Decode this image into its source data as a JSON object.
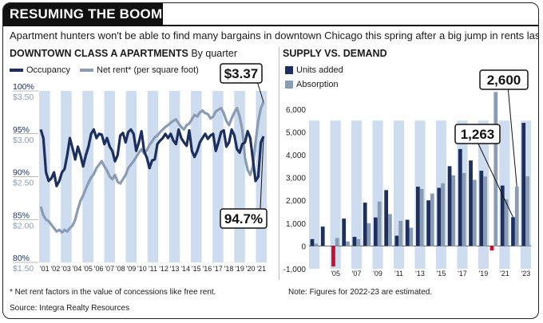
{
  "header": {
    "banner": "RESUMING THE BOOM",
    "subtitle": "Apartment hunters won't be able to find many bargains in downtown Chicago this spring after a big jump in rents last year."
  },
  "footer": {
    "footnote": "* Net rent factors in the value of concessions like free rent.",
    "source": "Source: Integra Realty Resources",
    "note": "Note: Figures for 2022-23 are estimated."
  },
  "colors": {
    "occupancy": "#1c2f5e",
    "net_rent": "#8a9bb4",
    "units_added": "#1c2f5e",
    "absorption": "#8a9bb4",
    "negative_units": "#c8102e",
    "stripe": "#cddcef",
    "label_bg": "#1c2f5e"
  },
  "chart_data": [
    {
      "type": "line",
      "title": "DOWNTOWN CLASS A APARTMENTS",
      "subtitle": "By quarter",
      "legend": [
        "Occupancy",
        "Net rent* (per square foot)"
      ],
      "x_tick_labels": [
        "'01",
        "'02",
        "'03",
        "'04",
        "'05",
        "'06",
        "'07",
        "'08",
        "'09",
        "'10",
        "'11",
        "'12",
        "'13",
        "'14",
        "'15",
        "'16",
        "'17",
        "'18",
        "'19",
        "'20",
        "'21"
      ],
      "left_axis": {
        "label": "Occupancy",
        "ticks": [
          "80%",
          "85%",
          "90%",
          "95%",
          "100%"
        ],
        "ylim": [
          80,
          100
        ]
      },
      "right_axis": {
        "label": "Net rent",
        "ticks": [
          "$1.50",
          "$2.00",
          "$2.50",
          "$3.00",
          "$3.50"
        ],
        "ylim": [
          1.5,
          3.5
        ]
      },
      "annotations": {
        "rent_last": "$3.37",
        "occupancy_low": "94.7%"
      },
      "series": [
        {
          "name": "Occupancy",
          "axis": "left",
          "values": [
            95.5,
            94.5,
            90.5,
            89.5,
            89.8,
            90.5,
            88.9,
            89.5,
            90.5,
            90.9,
            92.5,
            94.5,
            93.3,
            92.0,
            93.5,
            92.5,
            91.2,
            92.5,
            93.5,
            95.0,
            95.5,
            94.5,
            95.0,
            94.9,
            93.8,
            94.5,
            93.5,
            93.0,
            91.8,
            92.5,
            94.8,
            95.1,
            94.0,
            95.2,
            95.5,
            95.0,
            93.0,
            94.0,
            95.3,
            93.0,
            92.2,
            91.0,
            91.9,
            92.0,
            93.8,
            94.2,
            94.5,
            95.0,
            94.5,
            95.0,
            94.2,
            93.8,
            95.5,
            94.5,
            94.0,
            93.6,
            95.4,
            93.0,
            92.3,
            93.0,
            94.0,
            94.5,
            95.0,
            94.4,
            94.8,
            95.0,
            93.0,
            94.0,
            95.2,
            95.4,
            93.5,
            94.0,
            95.5,
            94.8,
            93.2,
            92.8,
            93.8,
            94.0,
            95.3,
            94.5,
            92.0,
            89.5,
            90.0,
            94.0,
            94.7
          ]
        },
        {
          "name": "Net rent* (per square foot)",
          "axis": "right",
          "values": [
            2.15,
            2.05,
            2.0,
            1.98,
            1.94,
            1.9,
            1.86,
            1.88,
            1.85,
            1.88,
            1.86,
            1.9,
            1.93,
            2.0,
            2.12,
            2.22,
            2.28,
            2.36,
            2.43,
            2.49,
            2.53,
            2.6,
            2.64,
            2.68,
            2.62,
            2.57,
            2.5,
            2.47,
            2.52,
            2.44,
            2.42,
            2.47,
            2.52,
            2.6,
            2.64,
            2.68,
            2.73,
            2.78,
            2.82,
            2.77,
            2.81,
            2.87,
            2.91,
            2.96,
            2.98,
            3.02,
            3.05,
            3.08,
            3.1,
            3.13,
            3.15,
            3.17,
            3.12,
            3.08,
            3.05,
            3.1,
            3.12,
            3.17,
            3.22,
            3.2,
            3.25,
            3.27,
            3.24,
            3.23,
            3.18,
            3.2,
            3.26,
            3.28,
            3.3,
            3.24,
            3.15,
            3.1,
            3.18,
            3.25,
            3.3,
            3.2,
            3.05,
            2.72,
            2.58,
            2.52,
            2.62,
            2.9,
            3.15,
            3.3,
            3.37
          ]
        }
      ]
    },
    {
      "type": "bar",
      "title": "SUPPLY VS. DEMAND",
      "legend": [
        "Units added",
        "Absorption"
      ],
      "categories": [
        "2003",
        "2004",
        "2005",
        "2006",
        "2007",
        "2008",
        "2009",
        "2010",
        "2011",
        "2012",
        "2013",
        "2014",
        "2015",
        "2016",
        "2017",
        "2018",
        "2019",
        "2020",
        "2021",
        "2022",
        "2023"
      ],
      "x_tick_labels": [
        "'05",
        "'07",
        "'09",
        "'11",
        "'13",
        "'15",
        "'17",
        "'19",
        "'21",
        "'23"
      ],
      "y_tick_labels": [
        "-1,000",
        "0",
        "1,000",
        "2,000",
        "3,000",
        "4,000",
        "5,000",
        "6,000"
      ],
      "ylim": [
        -1000,
        6800
      ],
      "annotations": {
        "units_2022": "1,263",
        "absorption_2022": "2,600"
      },
      "series": [
        {
          "name": "Units added",
          "values": [
            300,
            850,
            -900,
            1200,
            400,
            1900,
            1250,
            2450,
            450,
            1150,
            2600,
            2000,
            2550,
            3500,
            4250,
            3750,
            3300,
            -200,
            2650,
            1263,
            5400
          ]
        },
        {
          "name": "Absorption",
          "values": [
            100,
            0,
            350,
            200,
            300,
            1000,
            1950,
            1400,
            1100,
            800,
            2500,
            2300,
            2750,
            3100,
            3200,
            2900,
            3050,
            6750,
            2050,
            2600,
            3050
          ]
        }
      ]
    }
  ]
}
